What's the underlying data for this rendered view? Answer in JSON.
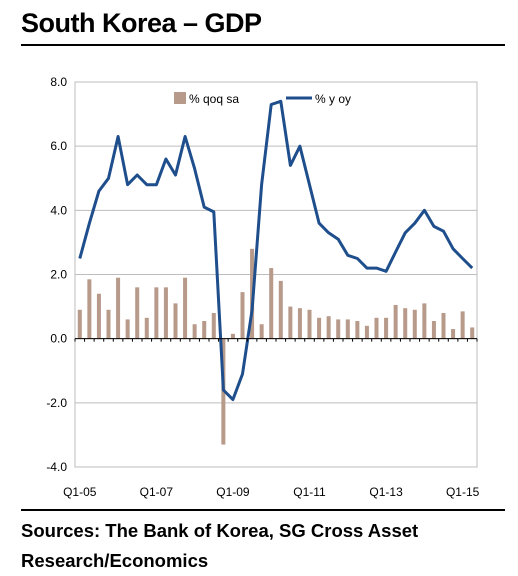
{
  "title": "South Korea – GDP",
  "source": "Sources: The Bank of Korea, SG Cross Asset Research/Economics",
  "colors": {
    "bar": "#b89a8b",
    "line": "#1f4e8c",
    "grid": "#bdbdbd"
  },
  "chart_data": {
    "type": "bar",
    "title": "",
    "xlabel": "",
    "ylabel": "",
    "ylim": [
      -4.0,
      8.0
    ],
    "yticks": [
      "8.0",
      "6.0",
      "4.0",
      "2.0",
      "0.0",
      "-2.0",
      "-4.0"
    ],
    "ytick_values": [
      8,
      6,
      4,
      2,
      0,
      -2,
      -4
    ],
    "xtick_labels": [
      "Q1-05",
      "Q1-07",
      "Q1-09",
      "Q1-11",
      "Q1-13",
      "Q1-15"
    ],
    "grid": true,
    "legend_position": "top",
    "categories": [
      "Q1-05",
      "Q2-05",
      "Q3-05",
      "Q4-05",
      "Q1-06",
      "Q2-06",
      "Q3-06",
      "Q4-06",
      "Q1-07",
      "Q2-07",
      "Q3-07",
      "Q4-07",
      "Q1-08",
      "Q2-08",
      "Q3-08",
      "Q4-08",
      "Q1-09",
      "Q2-09",
      "Q3-09",
      "Q4-09",
      "Q1-10",
      "Q2-10",
      "Q3-10",
      "Q4-10",
      "Q1-11",
      "Q2-11",
      "Q3-11",
      "Q4-11",
      "Q1-12",
      "Q2-12",
      "Q3-12",
      "Q4-12",
      "Q1-13",
      "Q2-13",
      "Q3-13",
      "Q4-13",
      "Q1-14",
      "Q2-14",
      "Q3-14",
      "Q4-14",
      "Q1-15",
      "Q2-15"
    ],
    "series": [
      {
        "name": "% qoq sa",
        "kind": "bar",
        "values": [
          0.9,
          1.85,
          1.4,
          0.9,
          1.9,
          0.6,
          1.6,
          0.65,
          1.6,
          1.6,
          1.1,
          1.9,
          0.45,
          0.55,
          0.8,
          -3.3,
          0.15,
          1.45,
          2.8,
          0.45,
          2.2,
          1.8,
          1.0,
          0.95,
          0.9,
          0.65,
          0.7,
          0.6,
          0.6,
          0.55,
          0.4,
          0.65,
          0.65,
          1.05,
          0.95,
          0.9,
          1.1,
          0.55,
          0.8,
          0.3,
          0.85,
          0.35
        ]
      },
      {
        "name": "% y oy",
        "kind": "line",
        "values": [
          2.5,
          3.6,
          4.6,
          5.0,
          6.3,
          4.8,
          5.1,
          4.8,
          4.8,
          5.6,
          5.1,
          6.3,
          5.3,
          4.1,
          3.95,
          -1.6,
          -1.9,
          -1.1,
          0.9,
          4.8,
          7.3,
          7.4,
          5.4,
          6.0,
          4.8,
          3.6,
          3.3,
          3.1,
          2.6,
          2.5,
          2.2,
          2.2,
          2.1,
          2.7,
          3.3,
          3.6,
          4.0,
          3.5,
          3.35,
          2.8,
          2.5,
          2.2
        ]
      }
    ]
  }
}
